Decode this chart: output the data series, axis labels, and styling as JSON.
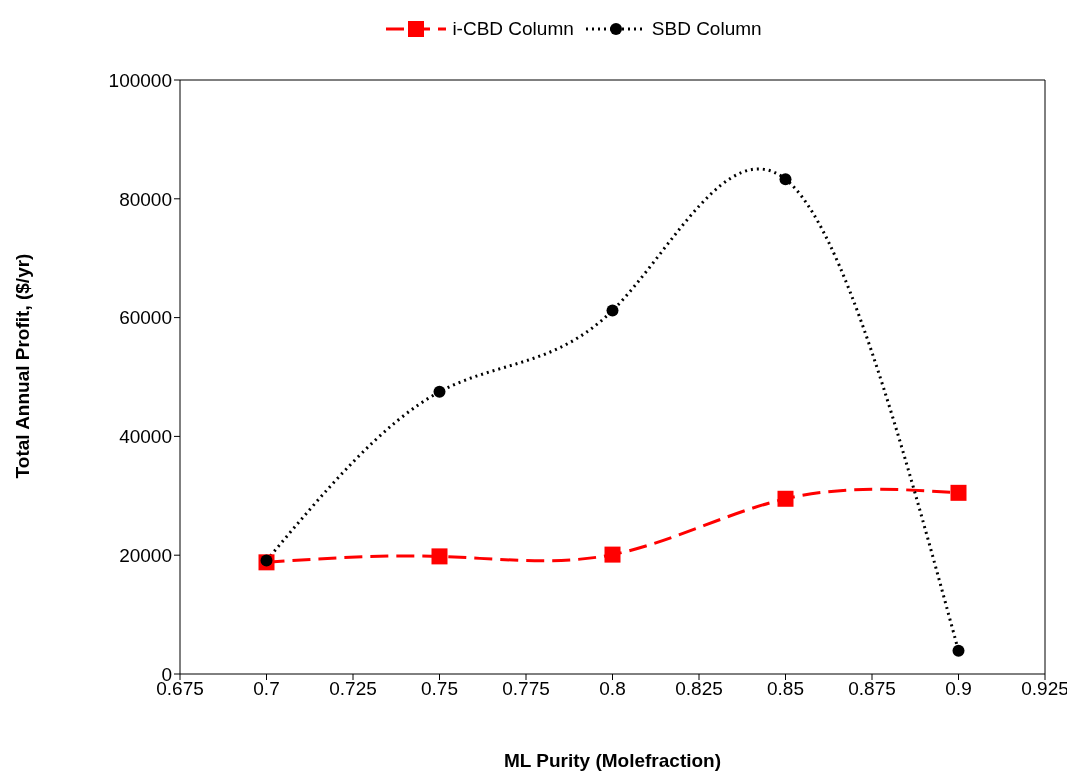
{
  "chart_data": {
    "type": "line",
    "xlabel": "ML Purity (Molefraction)",
    "ylabel": "Total Annual Profit, ($/yr)",
    "x": [
      0.7,
      0.75,
      0.8,
      0.85,
      0.9
    ],
    "series": [
      {
        "name": "i-CBD Column",
        "color": "#ff0000",
        "values": [
          18800,
          19800,
          20100,
          29500,
          30500
        ],
        "marker": "square",
        "line_style": "dashed"
      },
      {
        "name": "SBD Column",
        "color": "#000000",
        "values": [
          19100,
          47500,
          61200,
          83300,
          3900
        ],
        "marker": "circle",
        "line_style": "dotted"
      }
    ],
    "xlim": [
      0.675,
      0.925
    ],
    "xticks": [
      0.675,
      0.7,
      0.725,
      0.75,
      0.775,
      0.8,
      0.825,
      0.85,
      0.875,
      0.9,
      0.925
    ],
    "ylim": [
      0,
      100000
    ],
    "yticks": [
      0,
      20000,
      40000,
      60000,
      80000,
      100000
    ],
    "grid": false,
    "legend": "top"
  }
}
